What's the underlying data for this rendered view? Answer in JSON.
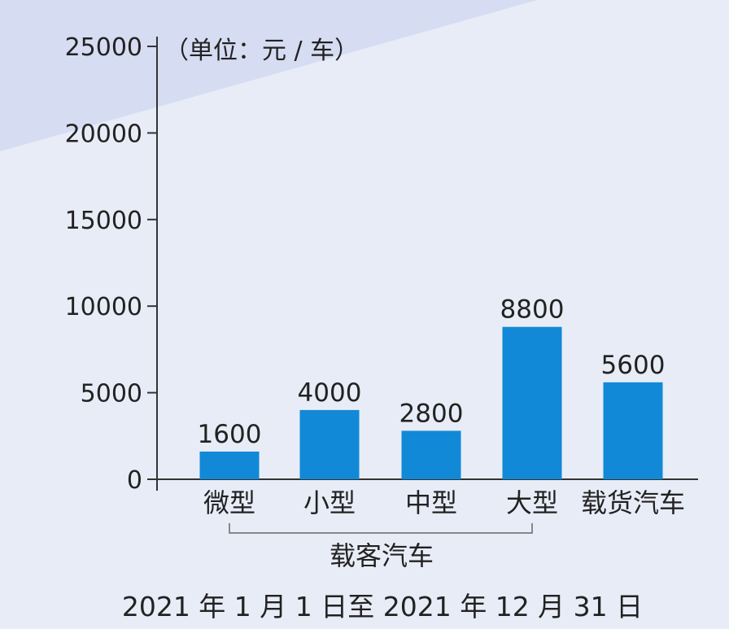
{
  "chart_data": {
    "type": "bar",
    "title": "",
    "unit_label": "（单位：元 / 车）",
    "categories": [
      "微型",
      "小型",
      "中型",
      "大型",
      "载货汽车"
    ],
    "values": [
      1600,
      4000,
      2800,
      8800,
      5600
    ],
    "data_labels": [
      "1600",
      "4000",
      "2800",
      "8800",
      "5600"
    ],
    "group_label": "载客汽车",
    "footer": "2021 年 1 月 1 日至 2021 年 12 月 31 日",
    "ylim": [
      0,
      25000
    ],
    "yticks": [
      0,
      5000,
      10000,
      15000,
      20000,
      25000
    ],
    "ytick_labels": [
      "0",
      "5000",
      "10000",
      "15000",
      "20000",
      "25000"
    ],
    "xlabel": "",
    "ylabel": "",
    "grid": false,
    "legend": "none",
    "colors": {
      "bar": "#1189d6",
      "background": "#e8ecf7",
      "band": "#d6dcf1",
      "axis": "#333333",
      "text": "#222222"
    }
  }
}
